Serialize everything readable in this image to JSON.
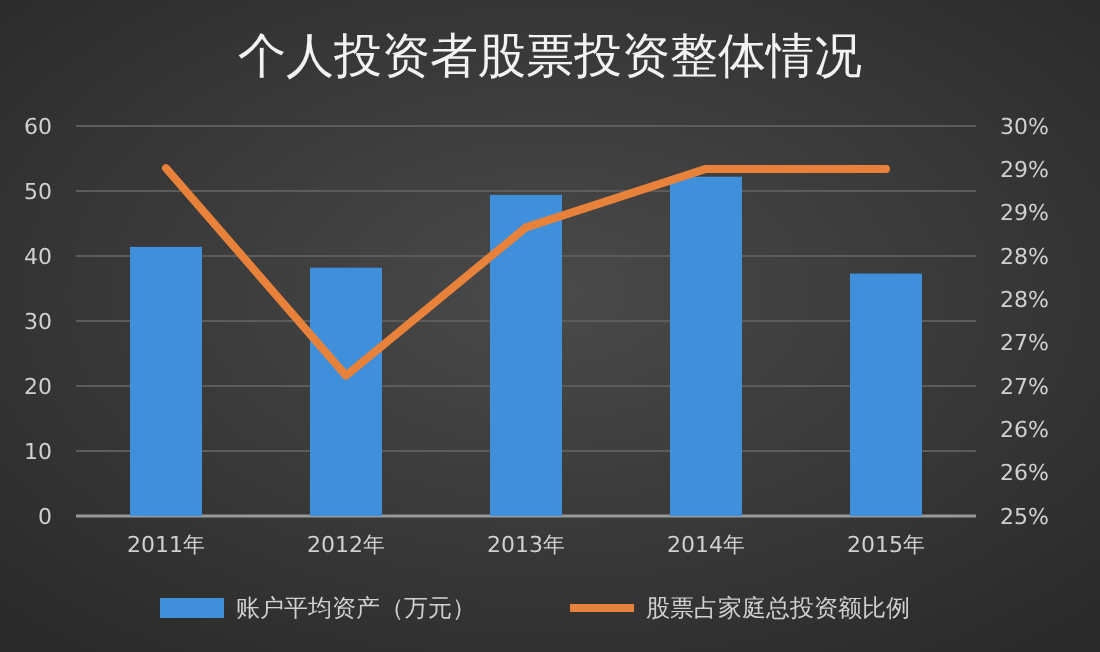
{
  "chart_data": {
    "type": "bar",
    "title": "个人投资者股票投资整体情况",
    "categories": [
      "2011年",
      "2012年",
      "2013年",
      "2014年",
      "2015年"
    ],
    "series": [
      {
        "name": "账户平均资产（万元）",
        "color": "#3f8fdb",
        "values": [
          41.4,
          38.2,
          49.4,
          52.2,
          37.3
        ]
      },
      {
        "name": "股票占家庭总投资额比例",
        "type": "line",
        "axis": "y2",
        "color": "#e8823a",
        "values": [
          29.46,
          26.8,
          28.7,
          29.45,
          29.45
        ]
      }
    ],
    "ylim": [
      0,
      60
    ],
    "yticks": [
      0,
      10,
      20,
      30,
      40,
      50,
      60
    ],
    "y2lim": [
      25,
      30
    ],
    "y2ticks": [
      {
        "value": 30,
        "label": "30%"
      },
      {
        "value": 29.444,
        "label": "29%"
      },
      {
        "value": 28.889,
        "label": "29%"
      },
      {
        "value": 28.333,
        "label": "28%"
      },
      {
        "value": 27.778,
        "label": "28%"
      },
      {
        "value": 27.222,
        "label": "27%"
      },
      {
        "value": 26.667,
        "label": "27%"
      },
      {
        "value": 26.111,
        "label": "26%"
      },
      {
        "value": 25.556,
        "label": "26%"
      },
      {
        "value": 25,
        "label": "25%"
      }
    ],
    "grid": "y",
    "legend": "bottom"
  }
}
